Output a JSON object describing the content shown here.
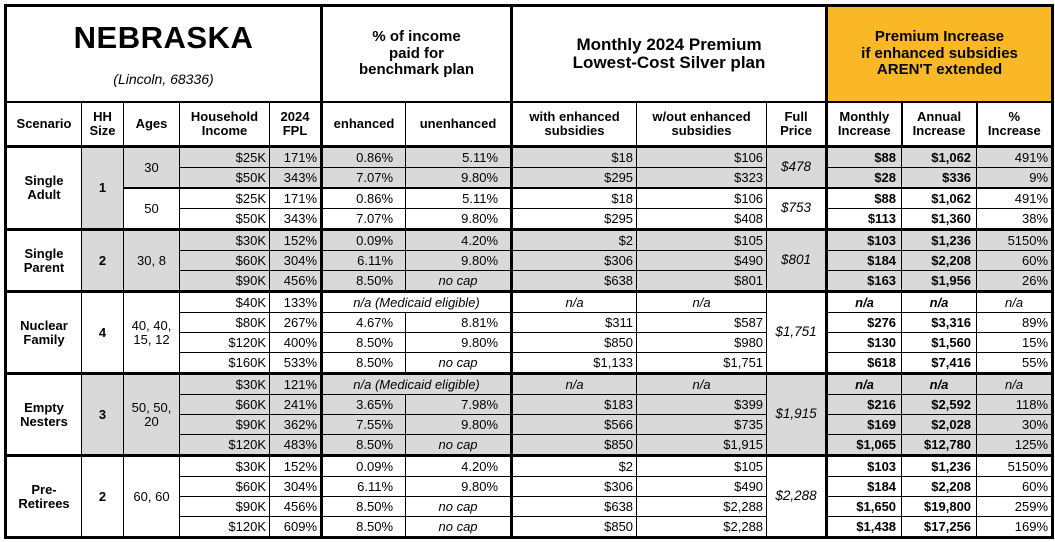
{
  "title": {
    "state": "NEBRASKA",
    "location": "(Lincoln, 68336)"
  },
  "group_headers": {
    "income_share": "% of income\npaid for\nbenchmark plan",
    "premium": "Monthly 2024 Premium\nLowest-Cost Silver plan",
    "increase": "Premium Increase\nif enhanced subsidies\nAREN'T extended"
  },
  "column_headers": {
    "scenario": "Scenario",
    "hh_size": "HH\nSize",
    "ages": "Ages",
    "income": "Household\nIncome",
    "fpl": "2024\nFPL",
    "enhanced": "enhanced",
    "unenhanced": "unenhanced",
    "with_sub": "with enhanced\nsubsidies",
    "without_sub": "w/out enhanced\nsubsidies",
    "full_price": "Full\nPrice",
    "monthly": "Monthly\nIncrease",
    "annual": "Annual\nIncrease",
    "pct": "%\nIncrease"
  },
  "colors": {
    "accent_orange": "#FBB826",
    "row_shade": "#D9D9D9"
  },
  "scenarios": [
    {
      "name": "Single\nAdult",
      "hh_size": "1",
      "age_groups": [
        {
          "ages": "30",
          "shaded": true,
          "full_price": "$478",
          "rows": [
            {
              "income": "$25K",
              "fpl": "171%",
              "enhanced": "0.86%",
              "unenhanced": "5.11%",
              "with_sub": "$18",
              "without_sub": "$106",
              "monthly": "$88",
              "annual": "$1,062",
              "pct": "491%"
            },
            {
              "income": "$50K",
              "fpl": "343%",
              "enhanced": "7.07%",
              "unenhanced": "9.80%",
              "with_sub": "$295",
              "without_sub": "$323",
              "monthly": "$28",
              "annual": "$336",
              "pct": "9%"
            }
          ]
        },
        {
          "ages": "50",
          "shaded": false,
          "full_price": "$753",
          "rows": [
            {
              "income": "$25K",
              "fpl": "171%",
              "enhanced": "0.86%",
              "unenhanced": "5.11%",
              "with_sub": "$18",
              "without_sub": "$106",
              "monthly": "$88",
              "annual": "$1,062",
              "pct": "491%"
            },
            {
              "income": "$50K",
              "fpl": "343%",
              "enhanced": "7.07%",
              "unenhanced": "9.80%",
              "with_sub": "$295",
              "without_sub": "$408",
              "monthly": "$113",
              "annual": "$1,360",
              "pct": "38%"
            }
          ]
        }
      ]
    },
    {
      "name": "Single\nParent",
      "hh_size": "2",
      "age_groups": [
        {
          "ages": "30, 8",
          "shaded": true,
          "full_price": "$801",
          "rows": [
            {
              "income": "$30K",
              "fpl": "152%",
              "enhanced": "0.09%",
              "unenhanced": "4.20%",
              "with_sub": "$2",
              "without_sub": "$105",
              "monthly": "$103",
              "annual": "$1,236",
              "pct": "5150%"
            },
            {
              "income": "$60K",
              "fpl": "304%",
              "enhanced": "6.11%",
              "unenhanced": "9.80%",
              "with_sub": "$306",
              "without_sub": "$490",
              "monthly": "$184",
              "annual": "$2,208",
              "pct": "60%"
            },
            {
              "income": "$90K",
              "fpl": "456%",
              "enhanced": "8.50%",
              "unenhanced": "no cap",
              "with_sub": "$638",
              "without_sub": "$801",
              "monthly": "$163",
              "annual": "$1,956",
              "pct": "26%"
            }
          ]
        }
      ]
    },
    {
      "name": "Nuclear\nFamily",
      "hh_size": "4",
      "age_groups": [
        {
          "ages": "40, 40,\n15, 12",
          "shaded": false,
          "full_price": "$1,751",
          "rows": [
            {
              "income": "$40K",
              "fpl": "133%",
              "medicaid_note": "n/a (Medicaid eligible)",
              "with_sub": "n/a",
              "without_sub": "n/a",
              "monthly": "n/a",
              "annual": "n/a",
              "pct": "n/a"
            },
            {
              "income": "$80K",
              "fpl": "267%",
              "enhanced": "4.67%",
              "unenhanced": "8.81%",
              "with_sub": "$311",
              "without_sub": "$587",
              "monthly": "$276",
              "annual": "$3,316",
              "pct": "89%"
            },
            {
              "income": "$120K",
              "fpl": "400%",
              "enhanced": "8.50%",
              "unenhanced": "9.80%",
              "with_sub": "$850",
              "without_sub": "$980",
              "monthly": "$130",
              "annual": "$1,560",
              "pct": "15%"
            },
            {
              "income": "$160K",
              "fpl": "533%",
              "enhanced": "8.50%",
              "unenhanced": "no cap",
              "with_sub": "$1,133",
              "without_sub": "$1,751",
              "monthly": "$618",
              "annual": "$7,416",
              "pct": "55%"
            }
          ]
        }
      ]
    },
    {
      "name": "Empty\nNesters",
      "hh_size": "3",
      "age_groups": [
        {
          "ages": "50, 50,\n20",
          "shaded": true,
          "full_price": "$1,915",
          "rows": [
            {
              "income": "$30K",
              "fpl": "121%",
              "medicaid_note": "n/a (Medicaid eligible)",
              "with_sub": "n/a",
              "without_sub": "n/a",
              "monthly": "n/a",
              "annual": "n/a",
              "pct": "n/a"
            },
            {
              "income": "$60K",
              "fpl": "241%",
              "enhanced": "3.65%",
              "unenhanced": "7.98%",
              "with_sub": "$183",
              "without_sub": "$399",
              "monthly": "$216",
              "annual": "$2,592",
              "pct": "118%"
            },
            {
              "income": "$90K",
              "fpl": "362%",
              "enhanced": "7.55%",
              "unenhanced": "9.80%",
              "with_sub": "$566",
              "without_sub": "$735",
              "monthly": "$169",
              "annual": "$2,028",
              "pct": "30%"
            },
            {
              "income": "$120K",
              "fpl": "483%",
              "enhanced": "8.50%",
              "unenhanced": "no cap",
              "with_sub": "$850",
              "without_sub": "$1,915",
              "monthly": "$1,065",
              "annual": "$12,780",
              "pct": "125%"
            }
          ]
        }
      ]
    },
    {
      "name": "Pre-\nRetirees",
      "hh_size": "2",
      "age_groups": [
        {
          "ages": "60, 60",
          "shaded": false,
          "full_price": "$2,288",
          "rows": [
            {
              "income": "$30K",
              "fpl": "152%",
              "enhanced": "0.09%",
              "unenhanced": "4.20%",
              "with_sub": "$2",
              "without_sub": "$105",
              "monthly": "$103",
              "annual": "$1,236",
              "pct": "5150%"
            },
            {
              "income": "$60K",
              "fpl": "304%",
              "enhanced": "6.11%",
              "unenhanced": "9.80%",
              "with_sub": "$306",
              "without_sub": "$490",
              "monthly": "$184",
              "annual": "$2,208",
              "pct": "60%"
            },
            {
              "income": "$90K",
              "fpl": "456%",
              "enhanced": "8.50%",
              "unenhanced": "no cap",
              "with_sub": "$638",
              "without_sub": "$2,288",
              "monthly": "$1,650",
              "annual": "$19,800",
              "pct": "259%"
            },
            {
              "income": "$120K",
              "fpl": "609%",
              "enhanced": "8.50%",
              "unenhanced": "no cap",
              "with_sub": "$850",
              "without_sub": "$2,288",
              "monthly": "$1,438",
              "annual": "$17,256",
              "pct": "169%"
            }
          ]
        }
      ]
    }
  ]
}
